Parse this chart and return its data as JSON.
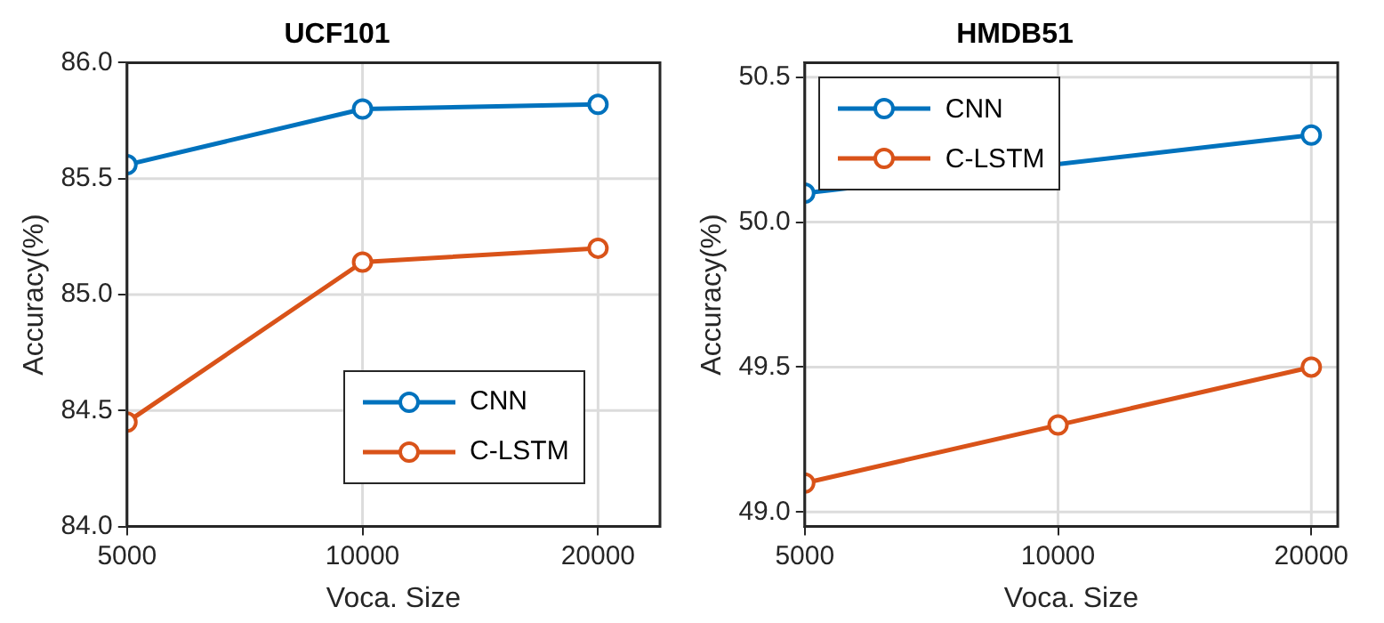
{
  "chart_data": [
    {
      "type": "line",
      "title": "UCF101",
      "xlabel": "Voca. Size",
      "ylabel": "Accuracy(%)",
      "x": [
        5000,
        10000,
        20000
      ],
      "log": "x",
      "xlim": [
        5000,
        24000
      ],
      "xticks": [
        5000,
        10000,
        20000
      ],
      "ylim": [
        84,
        86
      ],
      "yticks": [
        {
          "value": 84,
          "label": "84.0"
        },
        {
          "value": 84.5,
          "label": "84.5"
        },
        {
          "value": 85,
          "label": "85.0"
        },
        {
          "value": 85.5,
          "label": "85.5"
        },
        {
          "value": 86,
          "label": "86.0"
        }
      ],
      "grid": true,
      "legend": "bottom right",
      "marker": "circle",
      "line_style": "solid",
      "series": [
        {
          "name": "CNN",
          "color": "#0072bd",
          "values": [
            85.56,
            85.8,
            85.82
          ]
        },
        {
          "name": "C-LSTM",
          "color": "#d95319",
          "values": [
            84.45,
            85.14,
            85.2
          ]
        }
      ]
    },
    {
      "type": "line",
      "title": "HMDB51",
      "xlabel": "Voca. Size",
      "ylabel": "Accuracy(%)",
      "x": [
        5000,
        10000,
        20000
      ],
      "log": "x",
      "xlim": [
        5000,
        21500
      ],
      "xticks": [
        5000,
        10000,
        20000
      ],
      "ylim": [
        48.95,
        50.55
      ],
      "yticks": [
        {
          "value": 49,
          "label": "49.0"
        },
        {
          "value": 49.5,
          "label": "49.5"
        },
        {
          "value": 50,
          "label": "50.0"
        },
        {
          "value": 50.5,
          "label": "50.5"
        }
      ],
      "grid": true,
      "legend": "top left",
      "marker": "circle",
      "line_style": "solid",
      "series": [
        {
          "name": "CNN",
          "color": "#0072bd",
          "values": [
            50.1,
            null,
            50.3
          ]
        },
        {
          "name": "C-LSTM",
          "color": "#d95319",
          "values": [
            49.1,
            49.3,
            49.5
          ]
        }
      ]
    }
  ]
}
